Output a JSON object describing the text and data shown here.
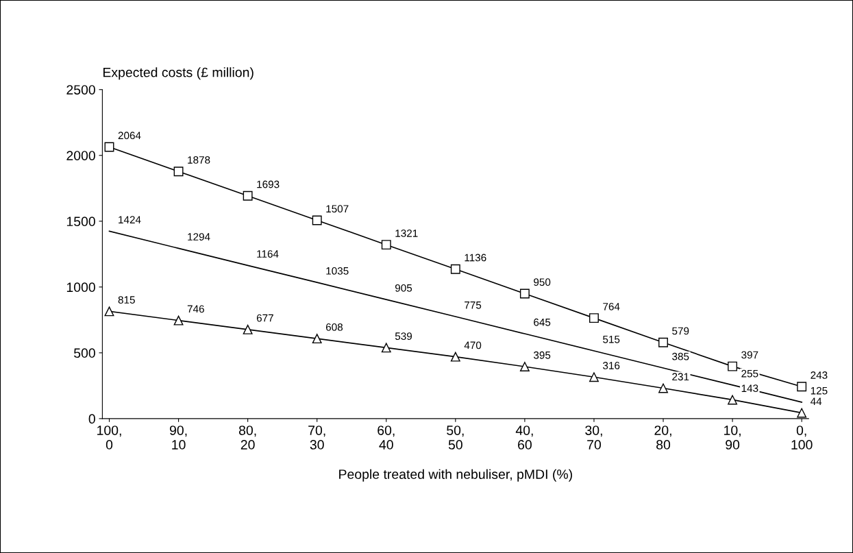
{
  "chart_data": {
    "type": "line",
    "ylabel": "Expected costs (£ million)",
    "xlabel": "People treated with nebuliser, pMDI (%)",
    "categories": [
      "100,\n0",
      "90,\n10",
      "80,\n20",
      "70,\n30",
      "60,\n40",
      "50,\n50",
      "40,\n60",
      "30,\n70",
      "20,\n80",
      "10,\n90",
      "0,\n100"
    ],
    "series": [
      {
        "color": "#000000",
        "marker": "square",
        "values": [
          2064,
          1878,
          1693,
          1507,
          1321,
          1136,
          950,
          764,
          579,
          397,
          243
        ]
      },
      {
        "color": "#000000",
        "marker": "none",
        "values": [
          1424,
          1294,
          1164,
          1035,
          905,
          775,
          645,
          515,
          385,
          255,
          125
        ]
      },
      {
        "color": "#000000",
        "marker": "triangle",
        "values": [
          815,
          746,
          677,
          608,
          539,
          470,
          395,
          316,
          231,
          143,
          44
        ]
      }
    ],
    "ylim": [
      0,
      2500
    ],
    "yticks": [
      0,
      500,
      1000,
      1500,
      2000,
      2500
    ],
    "data_labels": true,
    "grid": false,
    "line_style": "solid"
  }
}
